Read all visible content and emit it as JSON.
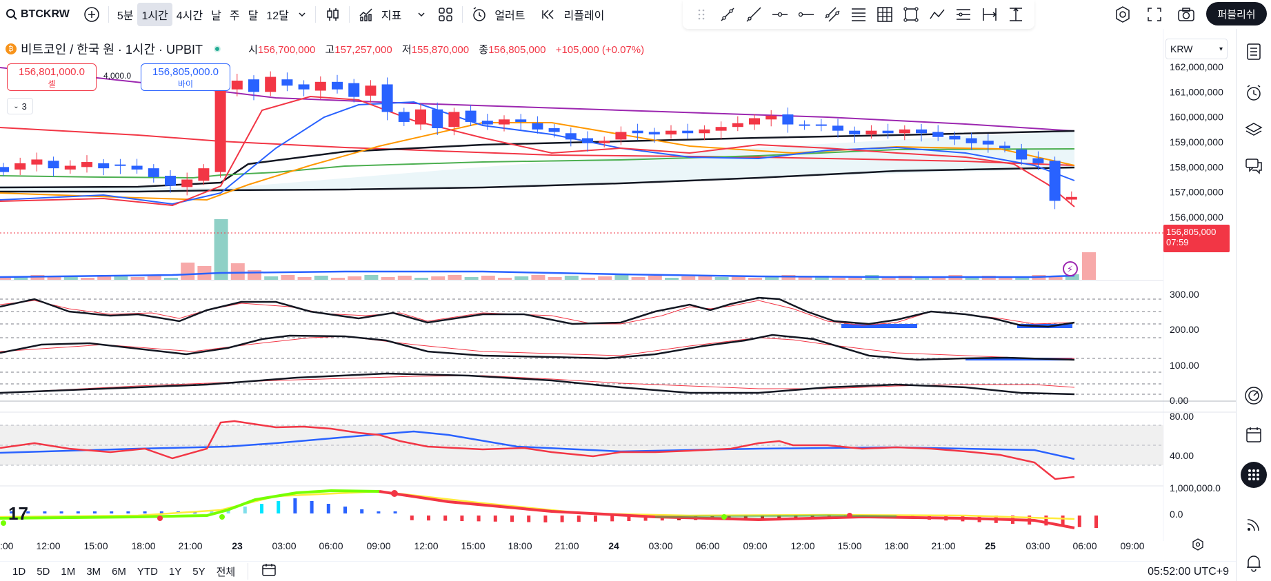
{
  "toolbar": {
    "symbol": "BTCKRW",
    "intervals": [
      "5분",
      "1시간",
      "4시간",
      "날",
      "주",
      "달",
      "12달"
    ],
    "active_interval": "1시간",
    "indicators_label": "지표",
    "alert_label": "얼러트",
    "replay_label": "리플레이",
    "publish_label": "퍼블리쉬"
  },
  "legend": {
    "title": "비트코인 / 한국 원 · 1시간 · UPBIT",
    "open_label": "시",
    "open": "156,700,000",
    "high_label": "고",
    "high": "157,257,000",
    "low_label": "저",
    "low": "155,870,000",
    "close_label": "종",
    "close": "156,805,000",
    "change": "+105,000 (+0.07%)"
  },
  "trade": {
    "sell_price": "156,801,000.0",
    "sell_label": "셀",
    "spread": "4,000.0",
    "buy_price": "156,805,000.0",
    "buy_label": "바이",
    "collapse_count": "3"
  },
  "currency": "KRW",
  "current_price": {
    "value": "156,805,000",
    "countdown": "07:59"
  },
  "price_axis": [
    "162,000,000",
    "161,000,000",
    "160,000,000",
    "159,000,000",
    "158,000,000",
    "157,000,000",
    "156,000,000"
  ],
  "osc_axis": [
    "300.00",
    "200.00",
    "100.00",
    "0.00"
  ],
  "rsi_axis": [
    "80.00",
    "40.00"
  ],
  "macd_axis": [
    "1,000,000.0",
    "0.0"
  ],
  "time_axis": [
    ":00",
    "12:00",
    "15:00",
    "18:00",
    "21:00",
    "23",
    "03:00",
    "06:00",
    "09:00",
    "12:00",
    "15:00",
    "18:00",
    "21:00",
    "24",
    "03:00",
    "06:00",
    "09:00",
    "12:00",
    "15:00",
    "18:00",
    "21:00",
    "25",
    "03:00",
    "06:00",
    "09:00"
  ],
  "bottom": {
    "ranges": [
      "1D",
      "5D",
      "1M",
      "3M",
      "6M",
      "YTD",
      "1Y",
      "5Y",
      "전체"
    ],
    "clock": "05:52:00 UTC+9"
  },
  "colors": {
    "up": "#f23645",
    "down": "#2962ff",
    "accent": "#131722"
  },
  "chart_data": {
    "type": "candlestick",
    "title": "비트코인 / 한국 원 · 1시간 · UPBIT",
    "ylim": [
      155500000,
      162700000
    ],
    "candles": [
      {
        "o": 158000000,
        "c": 157800000
      },
      {
        "o": 157900000,
        "c": 158150000
      },
      {
        "o": 158100000,
        "c": 158300000
      },
      {
        "o": 158250000,
        "c": 157950000
      },
      {
        "o": 157900000,
        "c": 158050000
      },
      {
        "o": 158000000,
        "c": 158200000
      },
      {
        "o": 158150000,
        "c": 157950000
      },
      {
        "o": 158100000,
        "c": 158050000
      },
      {
        "o": 158050000,
        "c": 157900000
      },
      {
        "o": 157950000,
        "c": 157600000
      },
      {
        "o": 157650000,
        "c": 157250000
      },
      {
        "o": 157200000,
        "c": 157500000
      },
      {
        "o": 157450000,
        "c": 157950000
      },
      {
        "o": 157800000,
        "c": 161450000
      },
      {
        "o": 161100000,
        "c": 161450000
      },
      {
        "o": 161500000,
        "c": 161000000
      },
      {
        "o": 161000000,
        "c": 161600000
      },
      {
        "o": 161500000,
        "c": 161250000
      },
      {
        "o": 161300000,
        "c": 161100000
      },
      {
        "o": 161050000,
        "c": 161400000
      },
      {
        "o": 161400000,
        "c": 161100000
      },
      {
        "o": 161350000,
        "c": 160800000
      },
      {
        "o": 160850000,
        "c": 161250000
      },
      {
        "o": 161300000,
        "c": 160200000
      },
      {
        "o": 160200000,
        "c": 159800000
      },
      {
        "o": 159700000,
        "c": 160300000
      },
      {
        "o": 160300000,
        "c": 159550000
      },
      {
        "o": 159600000,
        "c": 160200000
      },
      {
        "o": 160250000,
        "c": 159800000
      },
      {
        "o": 159850000,
        "c": 159700000
      },
      {
        "o": 159700000,
        "c": 159900000
      },
      {
        "o": 159900000,
        "c": 159800000
      },
      {
        "o": 159750000,
        "c": 159500000
      },
      {
        "o": 159550000,
        "c": 159400000
      },
      {
        "o": 159350000,
        "c": 159100000
      },
      {
        "o": 159150000,
        "c": 158950000
      },
      {
        "o": 158950000,
        "c": 159050000
      },
      {
        "o": 159100000,
        "c": 159400000
      },
      {
        "o": 159450000,
        "c": 159350000
      },
      {
        "o": 159400000,
        "c": 159300000
      },
      {
        "o": 159300000,
        "c": 159450000
      },
      {
        "o": 159450000,
        "c": 159350000
      },
      {
        "o": 159350000,
        "c": 159500000
      },
      {
        "o": 159450000,
        "c": 159600000
      },
      {
        "o": 159600000,
        "c": 159750000
      },
      {
        "o": 159700000,
        "c": 159950000
      },
      {
        "o": 159900000,
        "c": 160050000
      },
      {
        "o": 160100000,
        "c": 159700000
      },
      {
        "o": 159700000,
        "c": 159650000
      },
      {
        "o": 159700000,
        "c": 159650000
      },
      {
        "o": 159650000,
        "c": 159450000
      },
      {
        "o": 159450000,
        "c": 159300000
      },
      {
        "o": 159300000,
        "c": 159450000
      },
      {
        "o": 159450000,
        "c": 159350000
      },
      {
        "o": 159350000,
        "c": 159500000
      },
      {
        "o": 159500000,
        "c": 159350000
      },
      {
        "o": 159400000,
        "c": 159200000
      },
      {
        "o": 159250000,
        "c": 159100000
      },
      {
        "o": 159150000,
        "c": 158950000
      },
      {
        "o": 159050000,
        "c": 158900000
      },
      {
        "o": 158850000,
        "c": 158750000
      },
      {
        "o": 158700000,
        "c": 158300000
      },
      {
        "o": 158350000,
        "c": 158150000
      },
      {
        "o": 158250000,
        "c": 156650000
      },
      {
        "o": 156700000,
        "c": 156805000
      }
    ]
  }
}
